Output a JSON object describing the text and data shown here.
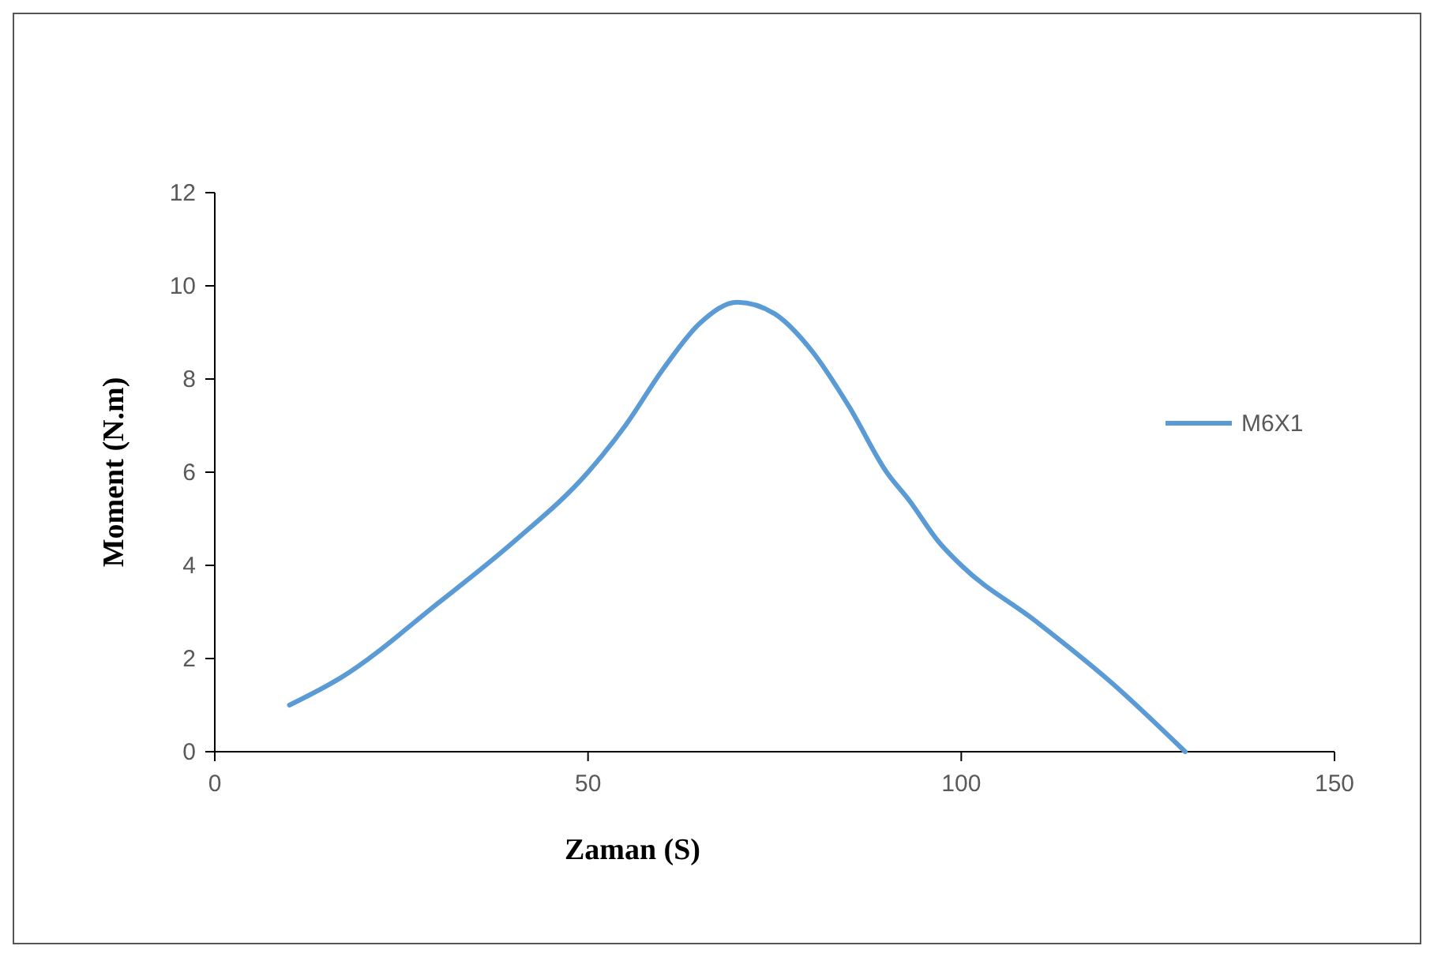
{
  "chart_data": {
    "type": "line",
    "xlabel": "Zaman  (S)",
    "ylabel": "Moment  (N.m)",
    "x": [
      10,
      17,
      30,
      40,
      50,
      55,
      60,
      65,
      70,
      75,
      80,
      85,
      90,
      93,
      97,
      100,
      110,
      120,
      130
    ],
    "series": [
      {
        "name": "M6X1",
        "color": "#5b9bd5",
        "values": [
          1.0,
          1.6,
          3.2,
          4.5,
          6.0,
          7.0,
          8.2,
          9.2,
          9.65,
          9.4,
          8.6,
          7.4,
          6.0,
          5.4,
          4.5,
          4.0,
          2.8,
          1.5,
          0
        ]
      }
    ],
    "xlim": [
      0,
      150
    ],
    "ylim": [
      0,
      12
    ],
    "xticks": [
      0,
      50,
      100,
      150
    ],
    "yticks": [
      0,
      2,
      4,
      6,
      8,
      10,
      12
    ],
    "grid": false,
    "legend": "right",
    "marker": "none",
    "line_style": "solid"
  }
}
